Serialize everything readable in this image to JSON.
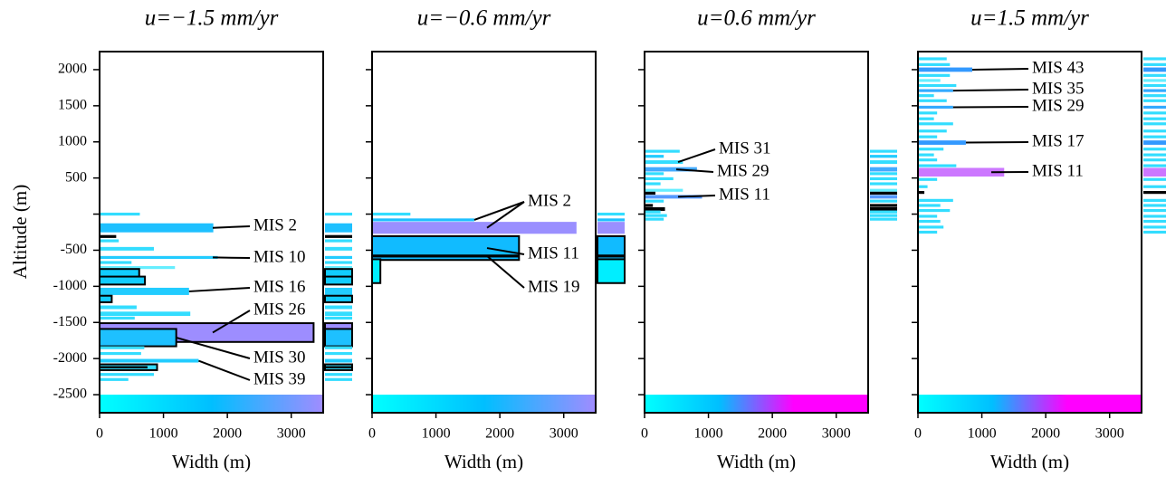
{
  "chart_data": [
    {
      "type": "barh",
      "title": "u=−1.5 mm/yr",
      "xlabel": "Width (m)",
      "ylabel": "Altitude (m)",
      "xlim": [
        0,
        3500
      ],
      "xticks": [
        0,
        1000,
        2000,
        3000
      ],
      "ylim": [
        -2750,
        2250
      ],
      "yticks": [
        2000,
        1500,
        1000,
        500,
        {
          "value": 0,
          "label": null
        },
        -500,
        -1000,
        -1500,
        -2000,
        -2500
      ],
      "altitude": [
        0,
        -190,
        -310,
        -370,
        -480,
        -600,
        -670,
        -740,
        -815,
        -920,
        -1070,
        -1175,
        -1290,
        -1380,
        -1440,
        -1640,
        -1710,
        -1850,
        -1930,
        -2030,
        -2120,
        -2120,
        -2220,
        -2290
      ],
      "width": [
        630,
        1780,
        260,
        300,
        850,
        1850,
        500,
        1180,
        620,
        710,
        1400,
        190,
        580,
        1420,
        550,
        3350,
        1200,
        700,
        650,
        1550,
        900,
        750,
        850,
        450
      ],
      "thickness": [
        40,
        125,
        40,
        40,
        50,
        40,
        40,
        40,
        110,
        110,
        100,
        90,
        50,
        60,
        40,
        260,
        240,
        40,
        40,
        50,
        80,
        30,
        40,
        40
      ],
      "color": [
        "#33ddff",
        "#1ec0ff",
        "#000000",
        "#33ddff",
        "#33ddff",
        "#22ccff",
        "#33ddff",
        "#66eeff",
        "#11ccff",
        "#11ccff",
        "#22ccff",
        "#11ccff",
        "#33ddff",
        "#33ddff",
        "#33ddff",
        "#9d8dff",
        "#1ec0ff",
        "#33ddff",
        "#33ddff",
        "#22ccff",
        "#33ddff",
        "#000000",
        "#33ddff",
        "#33ddff"
      ],
      "outlined": [
        false,
        false,
        false,
        false,
        false,
        false,
        false,
        false,
        true,
        true,
        false,
        true,
        false,
        false,
        false,
        true,
        true,
        false,
        false,
        false,
        true,
        false,
        false,
        false
      ],
      "annotations": [
        "MIS 2",
        "MIS 10",
        "MIS 16",
        "MIS 26",
        "MIS 30",
        "MIS 39"
      ],
      "colorbar": [
        "#00ffff",
        "#00bfff",
        "#a08cff"
      ]
    },
    {
      "type": "barh",
      "title": "u=−0.6 mm/yr",
      "xlabel": "Width (m)",
      "xlim": [
        0,
        3500
      ],
      "xticks": [
        0,
        1000,
        2000,
        3000
      ],
      "altitude": [
        0,
        -80,
        -190,
        -470,
        -580,
        -790
      ],
      "width": [
        600,
        1600,
        3200,
        2300,
        2300,
        130
      ],
      "thickness": [
        40,
        40,
        165,
        330,
        40,
        330
      ],
      "color": [
        "#33ddff",
        "#1ec0ff",
        "#9a8fff",
        "#11bbff",
        "#000000",
        "#00eeff"
      ],
      "outlined": [
        false,
        false,
        false,
        true,
        false,
        true
      ],
      "annotations": [
        "MIS 2",
        "MIS 11",
        "MIS 19"
      ],
      "colorbar": [
        "#00ffff",
        "#00bfff",
        "#a08cff"
      ]
    },
    {
      "type": "barh",
      "title": "u=0.6 mm/yr",
      "xlabel": "Width (m)",
      "xlim": [
        0,
        3500
      ],
      "xticks": [
        0,
        1000,
        2000,
        3000
      ],
      "altitude": [
        870,
        800,
        720,
        620,
        560,
        490,
        420,
        330,
        290,
        240,
        180,
        120,
        70,
        30,
        -20,
        -70
      ],
      "width": [
        550,
        300,
        600,
        820,
        300,
        450,
        250,
        600,
        170,
        900,
        300,
        130,
        320,
        250,
        350,
        300
      ],
      "thickness": [
        40,
        40,
        50,
        60,
        40,
        40,
        40,
        40,
        40,
        50,
        40,
        40,
        50,
        40,
        40,
        40
      ],
      "color": [
        "#33ddff",
        "#22ccff",
        "#33ddff",
        "#44aaff",
        "#33ddff",
        "#33ddff",
        "#33ddff",
        "#66eeff",
        "#000000",
        "#5599ff",
        "#33ddff",
        "#000000",
        "#000000",
        "#33ddff",
        "#33ddff",
        "#33ddff"
      ],
      "outlined": [
        false,
        false,
        false,
        false,
        false,
        false,
        false,
        false,
        false,
        false,
        false,
        false,
        false,
        false,
        false,
        false
      ],
      "annotations": [
        "MIS 31",
        "MIS 29",
        "MIS 11"
      ],
      "colorbar": [
        "#00ffff",
        "#00bfff",
        "#ff00ff",
        "#ff00ff"
      ]
    },
    {
      "type": "barh",
      "title": "u=1.5 mm/yr",
      "xlabel": "Width (m)",
      "xlim": [
        0,
        3500
      ],
      "xticks": [
        0,
        1000,
        2000,
        3000
      ],
      "altitude": [
        2150,
        2070,
        2000,
        1920,
        1850,
        1780,
        1710,
        1640,
        1570,
        1480,
        1400,
        1320,
        1250,
        1150,
        1070,
        990,
        900,
        820,
        750,
        670,
        580,
        480,
        380,
        300,
        190,
        120,
        50,
        -30,
        -100,
        -180,
        -250
      ],
      "width": [
        450,
        500,
        850,
        500,
        350,
        600,
        550,
        250,
        450,
        550,
        300,
        250,
        550,
        450,
        300,
        750,
        400,
        250,
        300,
        600,
        1350,
        300,
        150,
        100,
        550,
        350,
        500,
        300,
        350,
        400,
        300
      ],
      "thickness": [
        40,
        40,
        60,
        40,
        40,
        40,
        40,
        40,
        40,
        40,
        40,
        40,
        40,
        40,
        40,
        60,
        40,
        40,
        40,
        40,
        120,
        40,
        40,
        40,
        40,
        40,
        40,
        40,
        40,
        40,
        40
      ],
      "color": [
        "#33ddff",
        "#33ddff",
        "#3399ff",
        "#33ddff",
        "#66eeff",
        "#33ddff",
        "#33aaff",
        "#33ddff",
        "#33ddff",
        "#33aaff",
        "#33ddff",
        "#33ddff",
        "#33ddff",
        "#33ddff",
        "#33ddff",
        "#3399ff",
        "#33ddff",
        "#33ddff",
        "#33ddff",
        "#33ddff",
        "#cc77ff",
        "#33ddff",
        "#33ddff",
        "#000000",
        "#33ddff",
        "#33ddff",
        "#33ddff",
        "#33ddff",
        "#33ddff",
        "#33ddff",
        "#33ddff"
      ],
      "outlined": [
        false,
        false,
        false,
        false,
        false,
        false,
        false,
        false,
        false,
        false,
        false,
        false,
        false,
        false,
        false,
        false,
        false,
        false,
        false,
        false,
        false,
        false,
        false,
        false,
        false,
        false,
        false,
        false,
        false,
        false,
        false
      ],
      "annotations": [
        "MIS 43",
        "MIS 35",
        "MIS 29",
        "MIS 17",
        "MIS 11"
      ],
      "colorbar": [
        "#00ffff",
        "#00bfff",
        "#ff00ff",
        "#ff00ff"
      ]
    }
  ]
}
